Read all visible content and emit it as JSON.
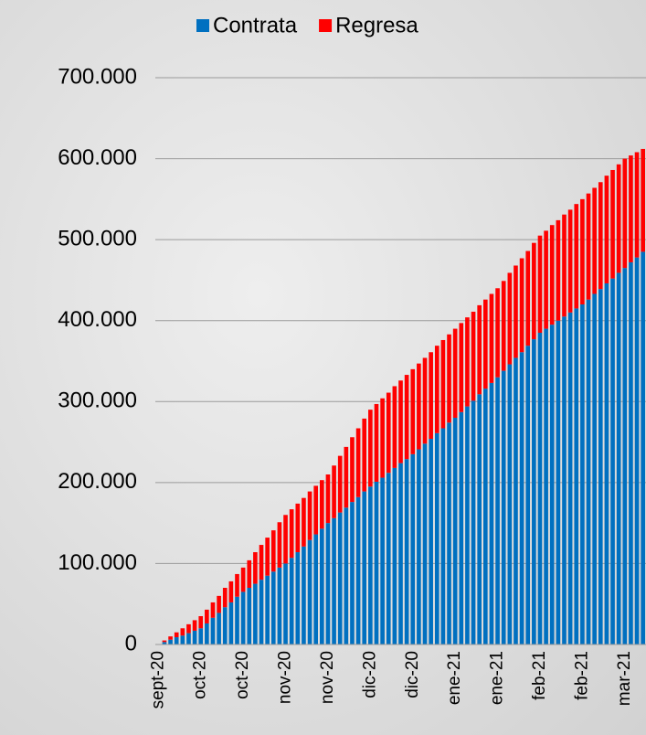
{
  "chart_data": {
    "type": "stacked_bar",
    "categories": [
      "sept-20",
      null,
      null,
      null,
      null,
      null,
      null,
      "oct-20",
      null,
      null,
      null,
      null,
      null,
      null,
      "oct-20",
      null,
      null,
      null,
      null,
      null,
      null,
      "nov-20",
      null,
      null,
      null,
      null,
      null,
      null,
      "nov-20",
      null,
      null,
      null,
      null,
      null,
      null,
      "dic-20",
      null,
      null,
      null,
      null,
      null,
      null,
      "dic-20",
      null,
      null,
      null,
      null,
      null,
      null,
      "ene-21",
      null,
      null,
      null,
      null,
      null,
      null,
      "ene-21",
      null,
      null,
      null,
      null,
      null,
      null,
      "feb-21",
      null,
      null,
      null,
      null,
      null,
      null,
      "feb-21",
      null,
      null,
      null,
      null,
      null,
      null,
      "mar-21",
      null,
      null,
      null
    ],
    "series": [
      {
        "name": "Contrata",
        "color": "#0070c0",
        "values": [
          0,
          3000,
          6000,
          9000,
          11000,
          14000,
          17000,
          20000,
          26000,
          33000,
          39000,
          46000,
          52000,
          59000,
          65000,
          70000,
          75000,
          80000,
          85000,
          90000,
          95000,
          100000,
          107000,
          114000,
          121000,
          129000,
          136000,
          143000,
          150000,
          156000,
          163000,
          169000,
          176000,
          182000,
          189000,
          195000,
          201000,
          206000,
          212000,
          218000,
          224000,
          229000,
          235000,
          241000,
          248000,
          254000,
          261000,
          267000,
          274000,
          280000,
          287000,
          294000,
          301000,
          309000,
          316000,
          323000,
          330000,
          338000,
          346000,
          354000,
          361000,
          369000,
          377000,
          385000,
          390000,
          395000,
          400000,
          405000,
          410000,
          415000,
          420000,
          426000,
          433000,
          439000,
          446000,
          452000,
          459000,
          465000,
          472000,
          478000,
          485000
        ]
      },
      {
        "name": "Regresa",
        "color": "#ff0000",
        "values": [
          0,
          2000,
          4000,
          6000,
          9000,
          11000,
          13000,
          15000,
          17000,
          19000,
          21000,
          24000,
          26000,
          28000,
          30000,
          34000,
          39000,
          43000,
          47000,
          51000,
          56000,
          60000,
          60000,
          60000,
          60000,
          60000,
          60000,
          60000,
          60000,
          65000,
          70000,
          75000,
          80000,
          85000,
          90000,
          95000,
          96000,
          98000,
          99000,
          101000,
          102000,
          104000,
          105000,
          106000,
          106000,
          107000,
          108000,
          109000,
          109000,
          110000,
          110000,
          110000,
          110000,
          110000,
          110000,
          110000,
          110000,
          111000,
          113000,
          114000,
          116000,
          117000,
          119000,
          120000,
          121000,
          123000,
          124000,
          126000,
          127000,
          129000,
          130000,
          131000,
          131000,
          132000,
          133000,
          134000,
          134000,
          135000,
          132000,
          130000,
          127000
        ]
      }
    ],
    "ylim": [
      0,
      700000
    ],
    "yticks": [
      0,
      {
        "value": 100000,
        "label": "100.000"
      },
      {
        "value": 200000,
        "label": "200.000"
      },
      {
        "value": 300000,
        "label": "300.000"
      },
      {
        "value": 400000,
        "label": "400.000"
      },
      {
        "value": 500000,
        "label": "500.000"
      },
      {
        "value": 600000,
        "label": "600.000"
      },
      {
        "value": 700000,
        "label": "700.000"
      }
    ],
    "grid": true,
    "legend": "top"
  }
}
